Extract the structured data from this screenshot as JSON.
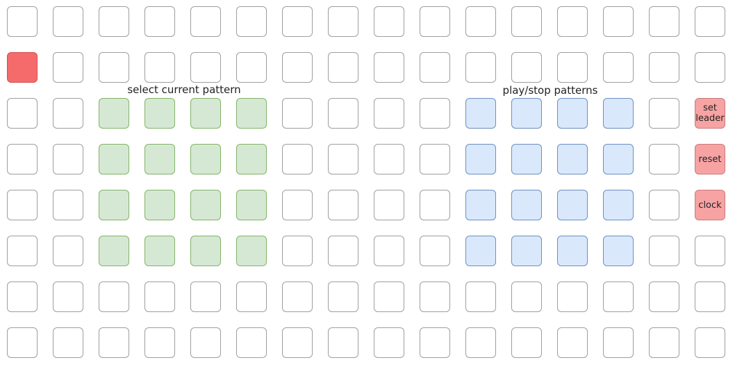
{
  "labels": {
    "select_current_pattern": "select current pattern",
    "play_stop_patterns": "play/stop patterns"
  },
  "grid": {
    "columns": 16,
    "rows": 8
  },
  "colors": {
    "empty": "#ffffff",
    "green": "#d5e8d4",
    "blue": "#dae8fc",
    "pink": "#f8a3a3",
    "red": "#f56b6b"
  },
  "pads": [
    {
      "name": "indicator-pad",
      "row": 2,
      "col": 1,
      "color": "red",
      "text": ""
    },
    {
      "name": "pattern-select-pad",
      "row": 3,
      "col": 3,
      "color": "green",
      "text": ""
    },
    {
      "name": "pattern-select-pad",
      "row": 3,
      "col": 4,
      "color": "green",
      "text": ""
    },
    {
      "name": "pattern-select-pad",
      "row": 3,
      "col": 5,
      "color": "green",
      "text": ""
    },
    {
      "name": "pattern-select-pad",
      "row": 3,
      "col": 6,
      "color": "green",
      "text": ""
    },
    {
      "name": "pattern-select-pad",
      "row": 4,
      "col": 3,
      "color": "green",
      "text": ""
    },
    {
      "name": "pattern-select-pad",
      "row": 4,
      "col": 4,
      "color": "green",
      "text": ""
    },
    {
      "name": "pattern-select-pad",
      "row": 4,
      "col": 5,
      "color": "green",
      "text": ""
    },
    {
      "name": "pattern-select-pad",
      "row": 4,
      "col": 6,
      "color": "green",
      "text": ""
    },
    {
      "name": "pattern-select-pad",
      "row": 5,
      "col": 3,
      "color": "green",
      "text": ""
    },
    {
      "name": "pattern-select-pad",
      "row": 5,
      "col": 4,
      "color": "green",
      "text": ""
    },
    {
      "name": "pattern-select-pad",
      "row": 5,
      "col": 5,
      "color": "green",
      "text": ""
    },
    {
      "name": "pattern-select-pad",
      "row": 5,
      "col": 6,
      "color": "green",
      "text": ""
    },
    {
      "name": "pattern-select-pad",
      "row": 6,
      "col": 3,
      "color": "green",
      "text": ""
    },
    {
      "name": "pattern-select-pad",
      "row": 6,
      "col": 4,
      "color": "green",
      "text": ""
    },
    {
      "name": "pattern-select-pad",
      "row": 6,
      "col": 5,
      "color": "green",
      "text": ""
    },
    {
      "name": "pattern-select-pad",
      "row": 6,
      "col": 6,
      "color": "green",
      "text": ""
    },
    {
      "name": "play-stop-pad",
      "row": 3,
      "col": 11,
      "color": "blue",
      "text": ""
    },
    {
      "name": "play-stop-pad",
      "row": 3,
      "col": 12,
      "color": "blue",
      "text": ""
    },
    {
      "name": "play-stop-pad",
      "row": 3,
      "col": 13,
      "color": "blue",
      "text": ""
    },
    {
      "name": "play-stop-pad",
      "row": 3,
      "col": 14,
      "color": "blue",
      "text": ""
    },
    {
      "name": "play-stop-pad",
      "row": 4,
      "col": 11,
      "color": "blue",
      "text": ""
    },
    {
      "name": "play-stop-pad",
      "row": 4,
      "col": 12,
      "color": "blue",
      "text": ""
    },
    {
      "name": "play-stop-pad",
      "row": 4,
      "col": 13,
      "color": "blue",
      "text": ""
    },
    {
      "name": "play-stop-pad",
      "row": 4,
      "col": 14,
      "color": "blue",
      "text": ""
    },
    {
      "name": "play-stop-pad",
      "row": 5,
      "col": 11,
      "color": "blue",
      "text": ""
    },
    {
      "name": "play-stop-pad",
      "row": 5,
      "col": 12,
      "color": "blue",
      "text": ""
    },
    {
      "name": "play-stop-pad",
      "row": 5,
      "col": 13,
      "color": "blue",
      "text": ""
    },
    {
      "name": "play-stop-pad",
      "row": 5,
      "col": 14,
      "color": "blue",
      "text": ""
    },
    {
      "name": "play-stop-pad",
      "row": 6,
      "col": 11,
      "color": "blue",
      "text": ""
    },
    {
      "name": "play-stop-pad",
      "row": 6,
      "col": 12,
      "color": "blue",
      "text": ""
    },
    {
      "name": "play-stop-pad",
      "row": 6,
      "col": 13,
      "color": "blue",
      "text": ""
    },
    {
      "name": "play-stop-pad",
      "row": 6,
      "col": 14,
      "color": "blue",
      "text": ""
    },
    {
      "name": "set-leader-pad",
      "row": 3,
      "col": 16,
      "color": "pink",
      "text": "set leader"
    },
    {
      "name": "reset-pad",
      "row": 4,
      "col": 16,
      "color": "pink",
      "text": "reset"
    },
    {
      "name": "clock-pad",
      "row": 5,
      "col": 16,
      "color": "pink",
      "text": "clock"
    }
  ]
}
